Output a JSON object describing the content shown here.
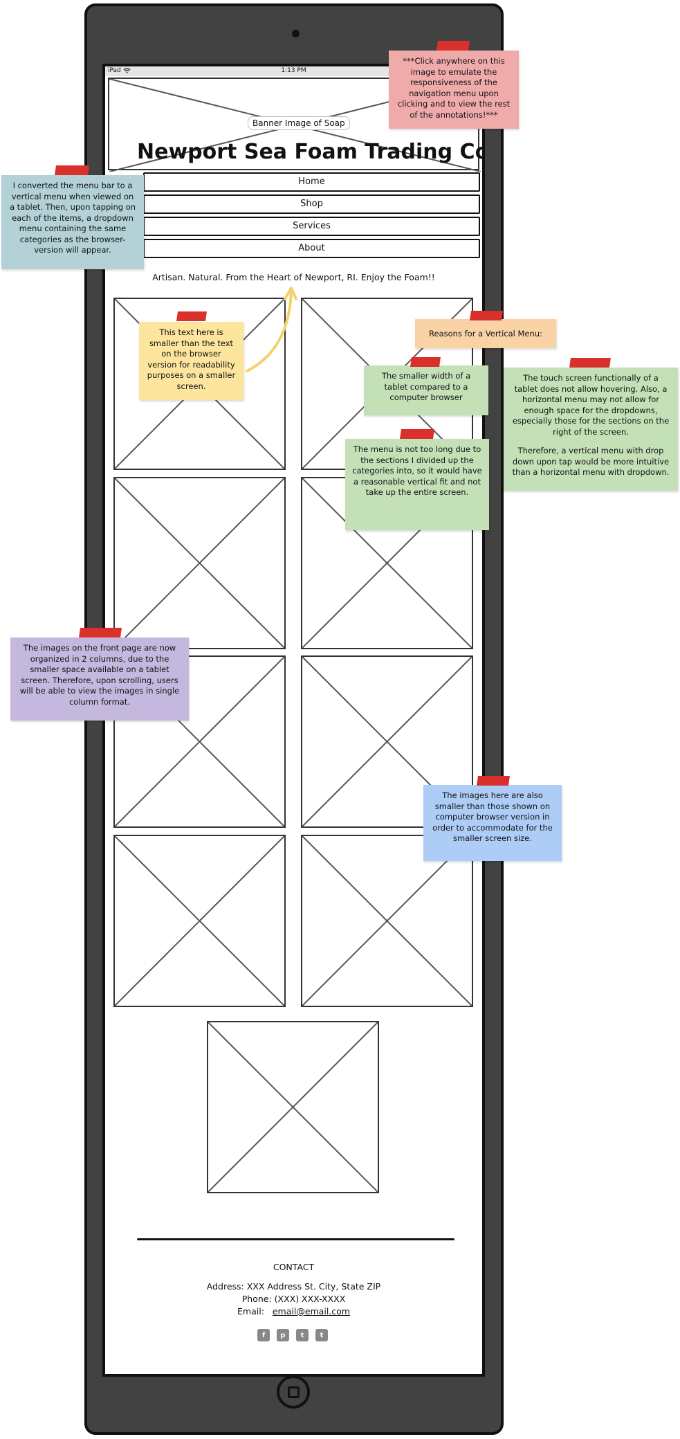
{
  "status_bar": {
    "device": "iPad",
    "time": "1:13 PM"
  },
  "banner": {
    "label": "Banner Image of Soap",
    "title": "Newport Sea Foam Trading Co."
  },
  "nav": {
    "items": [
      "Home",
      "Shop",
      "Services",
      "About"
    ]
  },
  "tagline": "Artisan. Natural. From the Heart of Newport, RI. Enjoy the Foam!!",
  "footer": {
    "heading": "CONTACT",
    "address": "Address: XXX Address St. City, State ZIP",
    "phone": "Phone: (XXX) XXX-XXXX",
    "email_label": "Email:",
    "email": "email@email.com",
    "social_icons": [
      "facebook-icon",
      "pinterest-icon",
      "twitter-icon",
      "tumblr-icon"
    ],
    "social_glyphs": [
      "f",
      "p",
      "t",
      "t"
    ]
  },
  "notes": {
    "click_anywhere": "***Click anywhere on this image to emulate the responsiveness of the navigation menu upon clicking and to view the rest of the annotations!***",
    "menu_converted": "I converted the menu bar to a vertical menu when viewed on a tablet. Then, upon tapping on each of the items, a dropdown menu containing the same categories as the browser-version will appear.",
    "text_smaller": "This text here is smaller than the text on the browser version for readability purposes on a smaller screen.",
    "reasons_title": "Reasons for a Vertical Menu:",
    "smaller_width": "The smaller width of a tablet compared to a computer browser",
    "touch_screen": "The touch screen functionally of a tablet does not allow hovering. Also, a horizontal menu may not allow for enough space for the dropdowns, especially those for the sections on the right of the screen.",
    "touch_screen_2": "Therefore, a vertical menu with drop down upon tap would be more intuitive than a horizontal menu with dropdown.",
    "menu_not_long": "The menu is not too long due to the sections I divided up the categories into, so it would have a reasonable vertical fit and not take up the entire screen.",
    "two_columns": "The images on the front page are now organized in 2 columns, due to the smaller space available on a tablet screen. Therefore, upon scrolling, users will be able to view the images in single column format.",
    "images_smaller": "The images here are also smaller than those shown on computer browser version in order to accommodate for the smaller screen size."
  },
  "colors": {
    "device_frame": "#424242",
    "note_red": "#efaaaa",
    "note_teal": "#b3d1d6",
    "note_yellow": "#fde59e",
    "note_orange": "#f9d3a5",
    "note_green": "#c4e0b7",
    "note_purple": "#c5b8de",
    "note_blue": "#adcdf6",
    "tape": "#d9302c",
    "arrow": "#f2d36b"
  }
}
